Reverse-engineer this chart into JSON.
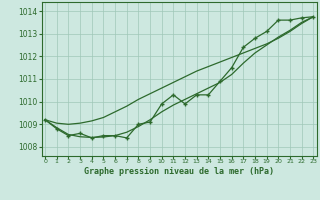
{
  "title": "Graphe pression niveau de la mer (hPa)",
  "hours": [
    0,
    1,
    2,
    3,
    4,
    5,
    6,
    7,
    8,
    9,
    10,
    11,
    12,
    13,
    14,
    15,
    16,
    17,
    18,
    19,
    20,
    21,
    22,
    23
  ],
  "series_main": [
    1009.2,
    1008.8,
    1008.5,
    1008.6,
    1008.4,
    1008.5,
    1008.5,
    1008.4,
    1009.0,
    1009.1,
    1009.9,
    1010.3,
    1009.9,
    1010.3,
    1010.3,
    1010.9,
    1011.5,
    1012.4,
    1012.8,
    1013.1,
    1013.6,
    1013.6,
    1013.7,
    1013.75
  ],
  "series_smooth1": [
    1009.2,
    1009.05,
    1009.0,
    1009.05,
    1009.15,
    1009.3,
    1009.55,
    1009.8,
    1010.1,
    1010.35,
    1010.6,
    1010.85,
    1011.1,
    1011.35,
    1011.55,
    1011.75,
    1011.95,
    1012.15,
    1012.35,
    1012.55,
    1012.8,
    1013.1,
    1013.45,
    1013.75
  ],
  "series_smooth2": [
    1009.2,
    1008.85,
    1008.55,
    1008.45,
    1008.42,
    1008.44,
    1008.5,
    1008.65,
    1008.9,
    1009.2,
    1009.55,
    1009.85,
    1010.1,
    1010.35,
    1010.6,
    1010.85,
    1011.2,
    1011.7,
    1012.15,
    1012.5,
    1012.85,
    1013.15,
    1013.5,
    1013.75
  ],
  "line_color": "#2d6a2d",
  "bg_color": "#cde8e0",
  "grid_color": "#a0c8b8",
  "ylim": [
    1007.6,
    1014.4
  ],
  "yticks": [
    1008,
    1009,
    1010,
    1011,
    1012,
    1013,
    1014
  ],
  "font_color": "#2d6a2d"
}
